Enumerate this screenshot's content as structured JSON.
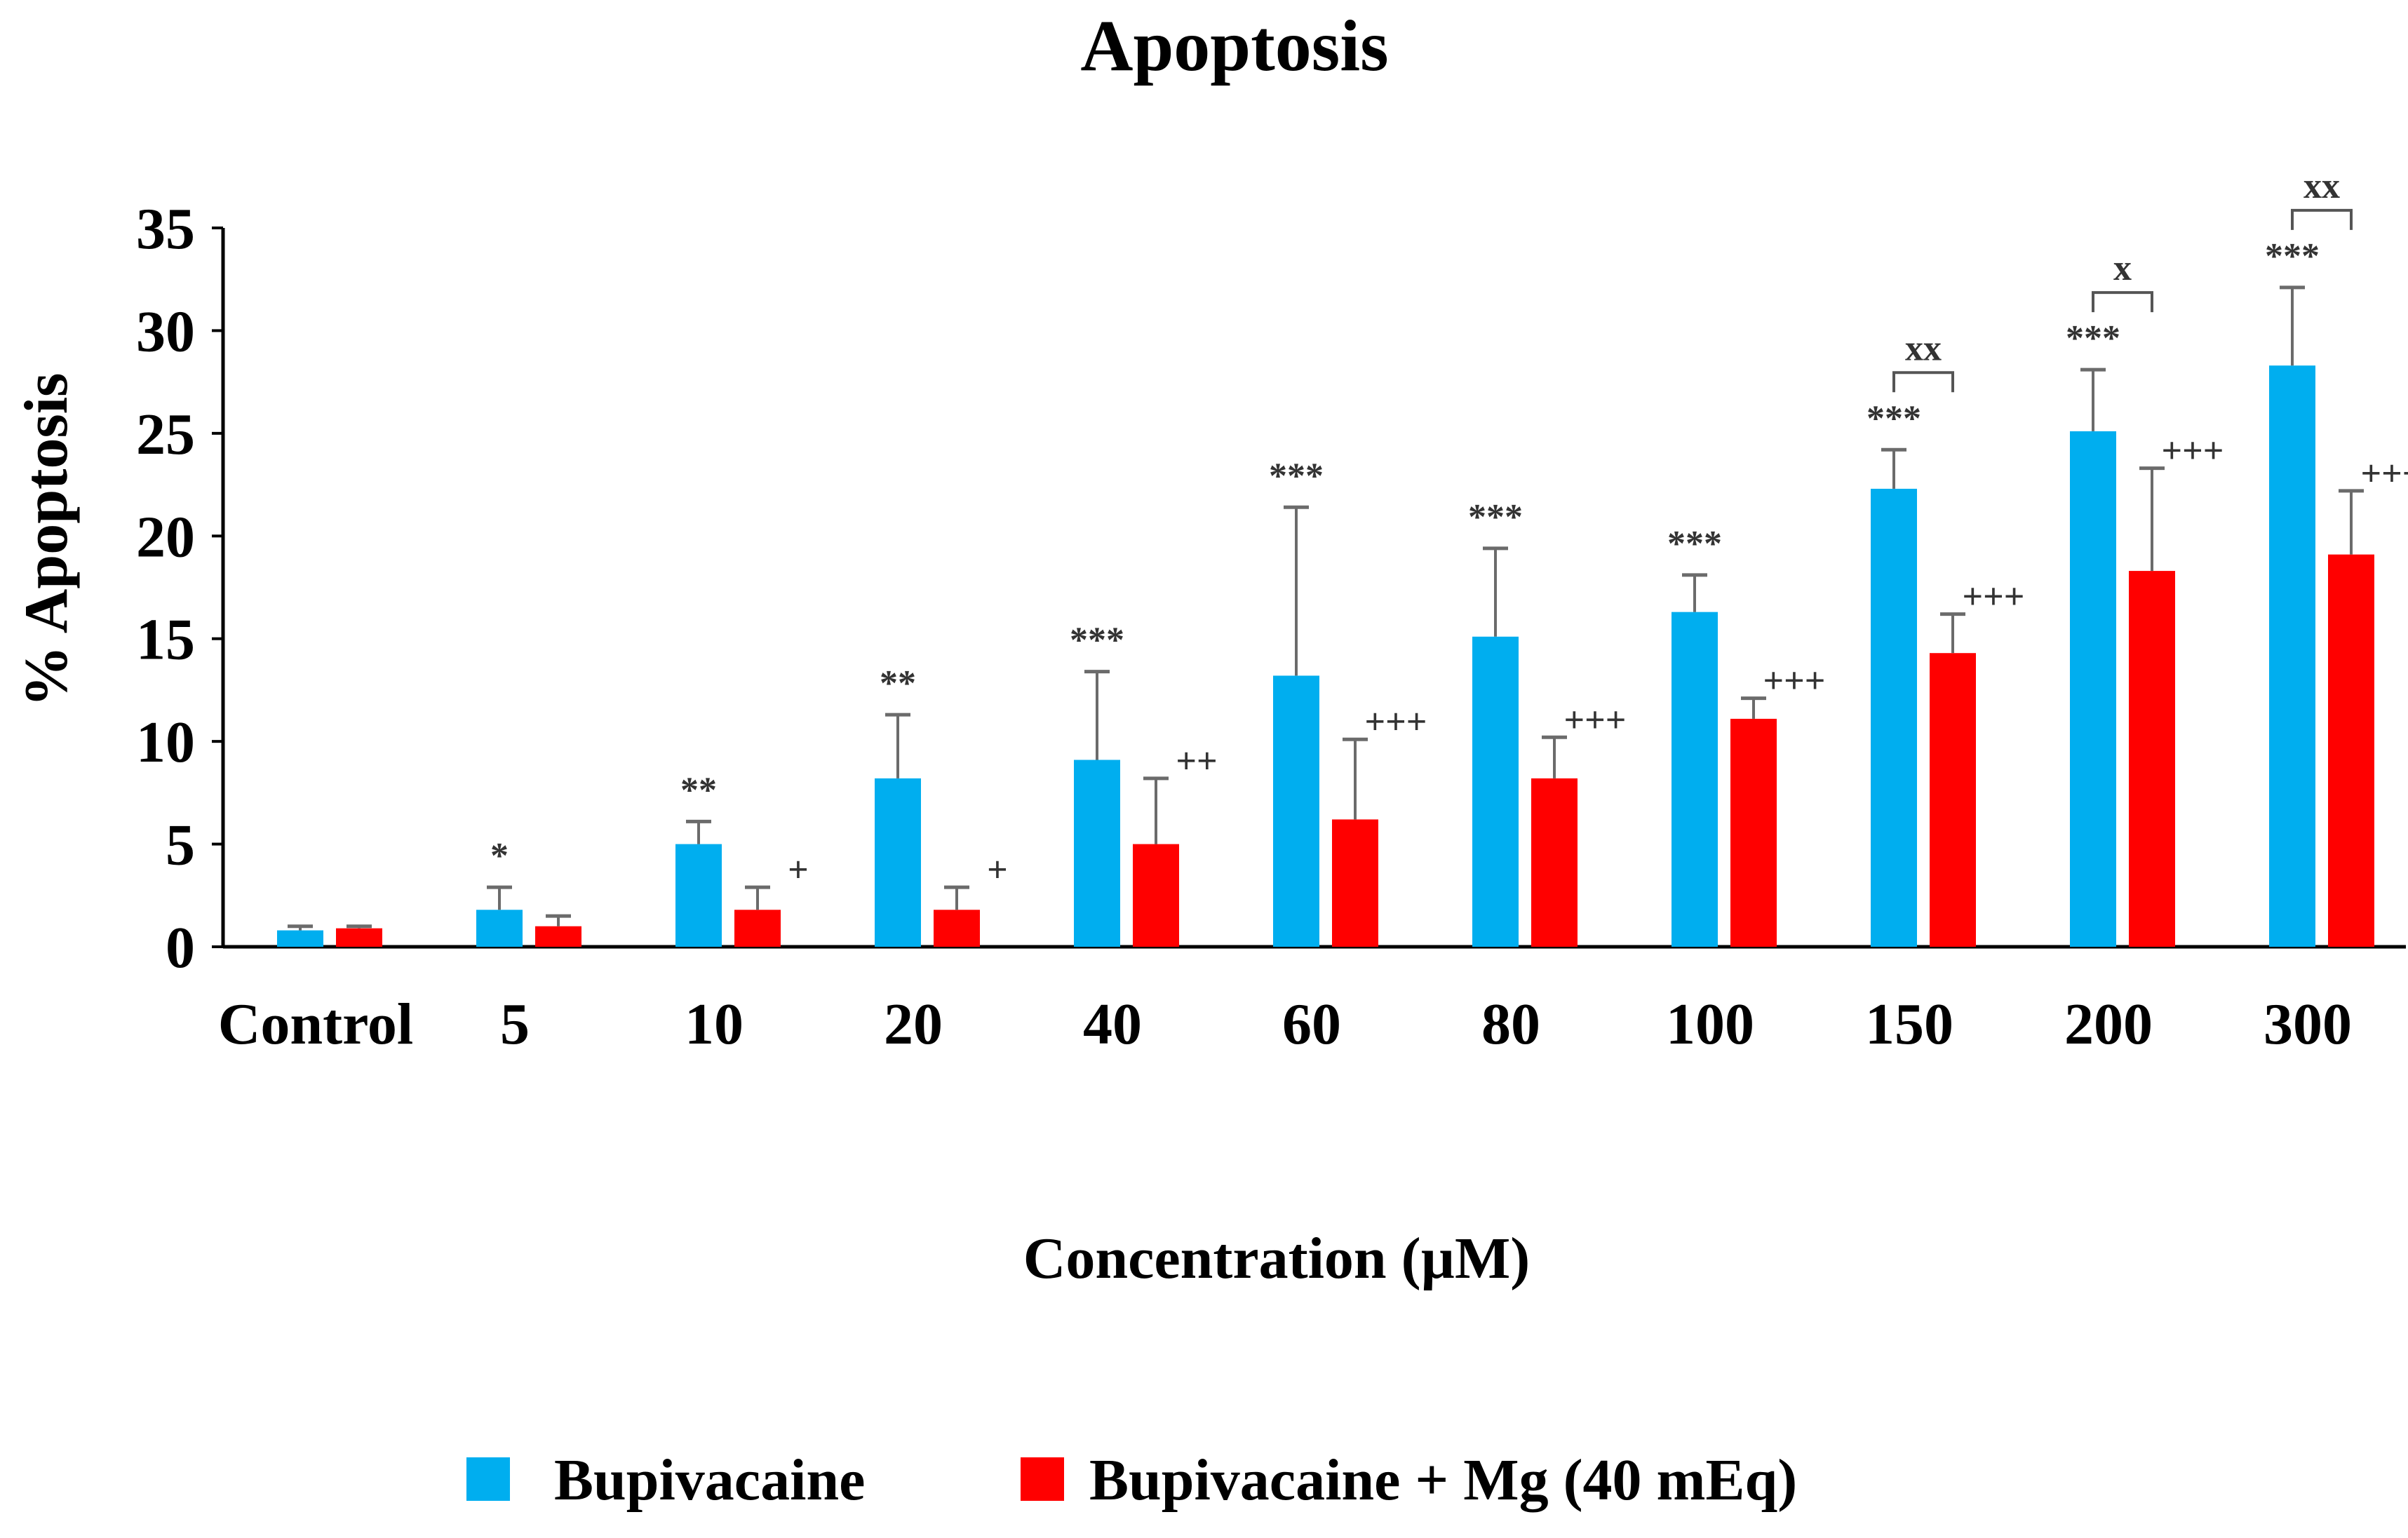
{
  "chart_data": {
    "type": "bar",
    "title": "Apoptosis",
    "xlabel": "Concentration (µM)",
    "ylabel": "%  Apoptosis",
    "ylim": [
      0,
      35
    ],
    "yticks": [
      0,
      5,
      10,
      15,
      20,
      25,
      30,
      35
    ],
    "grid": false,
    "legend_position": "bottom",
    "categories": [
      "Control",
      "5",
      "10",
      "20",
      "40",
      "60",
      "80",
      "100",
      "150",
      "200",
      "300"
    ],
    "series": [
      {
        "name": "Bupivacaine",
        "color": "#00AEEF",
        "values": [
          0.8,
          1.8,
          5.0,
          8.2,
          9.1,
          13.2,
          15.1,
          16.3,
          22.3,
          25.1,
          28.3
        ],
        "errors": [
          0.2,
          1.1,
          1.1,
          3.1,
          4.3,
          8.2,
          4.3,
          1.8,
          1.9,
          3.0,
          3.8
        ],
        "markers": [
          "",
          "*",
          "**",
          "**",
          "***",
          "***",
          "***",
          "***",
          "***",
          "***",
          "***"
        ]
      },
      {
        "name": "Bupivacaine + Mg (40 mEq)",
        "color": "#FF0000",
        "values": [
          0.9,
          1.0,
          1.8,
          1.8,
          5.0,
          6.2,
          8.2,
          11.1,
          14.3,
          18.3,
          19.1
        ],
        "errors": [
          0.1,
          0.5,
          1.1,
          1.1,
          3.2,
          3.9,
          2.0,
          1.0,
          1.9,
          5.0,
          3.1
        ],
        "markers": [
          "",
          "",
          "+",
          "+",
          "++",
          "+++",
          "+++",
          "+++",
          "+++",
          "+++",
          "+++"
        ]
      }
    ],
    "comparisons": [
      {
        "category": "150",
        "label": "xx"
      },
      {
        "category": "200",
        "label": "x"
      },
      {
        "category": "300",
        "label": "xx"
      }
    ]
  }
}
